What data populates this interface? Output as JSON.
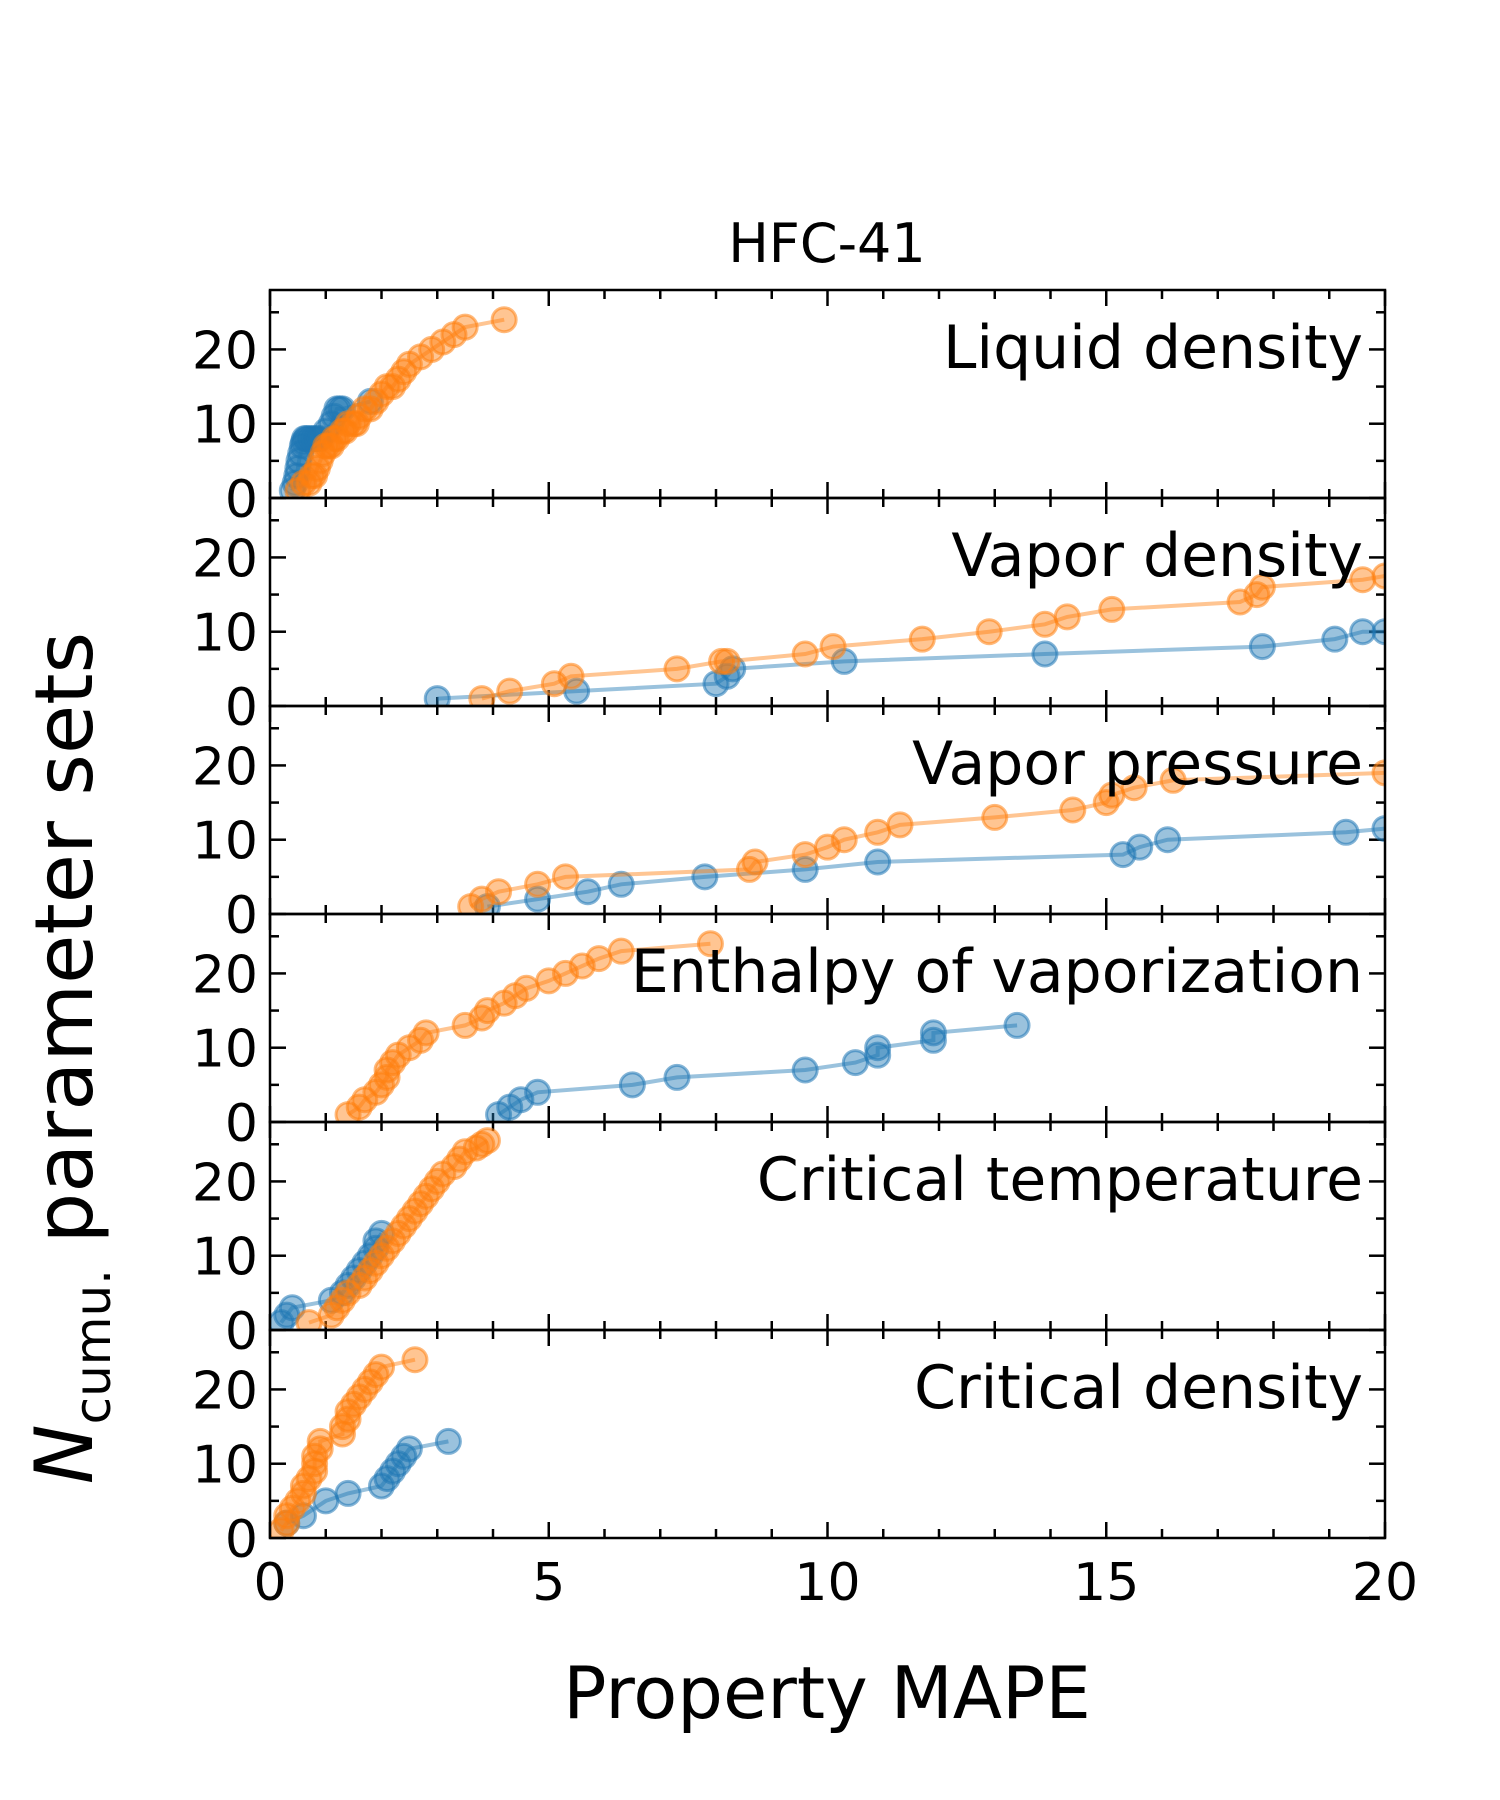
{
  "chart_data": {
    "type": "scatter",
    "title": "HFC-41",
    "xlabel": "Property MAPE",
    "ylabel_italic": "N",
    "ylabel_subscript": "cumu.",
    "ylabel_rest": " parameter sets",
    "xlim": [
      0,
      20
    ],
    "ylim": [
      0,
      28
    ],
    "x_ticks": [
      0,
      5,
      10,
      15,
      20
    ],
    "y_ticks": [
      0,
      10,
      20
    ],
    "colors": {
      "blue": "#1f77b4",
      "orange": "#ff7f0e"
    },
    "panels": [
      {
        "label": "Liquid density",
        "series": [
          {
            "color": "blue",
            "x": [
              0.4,
              0.45,
              0.48,
              0.5,
              0.52,
              0.55,
              0.58,
              0.6,
              0.62,
              0.65,
              0.7,
              0.75,
              0.8,
              0.85,
              0.9,
              1.0,
              1.1,
              1.15,
              1.2,
              1.25,
              1.3,
              1.8
            ],
            "y": [
              1,
              2,
              3,
              4,
              5,
              6,
              7,
              7.5,
              8,
              8,
              8,
              8,
              8,
              8,
              8,
              9,
              10,
              11,
              12,
              12,
              12,
              13
            ]
          },
          {
            "color": "orange",
            "x": [
              0.5,
              0.6,
              0.7,
              0.75,
              0.8,
              0.85,
              0.9,
              0.95,
              1.0,
              1.05,
              1.1,
              1.15,
              1.2,
              1.3,
              1.35,
              1.4,
              1.5,
              1.55,
              1.6,
              1.7,
              1.8,
              1.9,
              2.0,
              2.1,
              2.2,
              2.3,
              2.4,
              2.5,
              2.7,
              2.9,
              3.1,
              3.3,
              3.5,
              4.2
            ],
            "y": [
              1,
              2,
              2,
              3,
              3,
              4,
              5,
              6,
              7,
              7,
              7,
              8,
              8,
              9,
              9,
              10,
              10,
              10,
              11,
              12,
              12,
              13,
              14,
              15,
              15,
              16,
              17,
              18,
              19,
              20,
              21,
              22,
              23,
              24
            ]
          }
        ]
      },
      {
        "label": "Vapor density",
        "series": [
          {
            "color": "blue",
            "x": [
              3.0,
              5.5,
              8.0,
              8.2,
              8.3,
              10.3,
              13.9,
              17.8,
              19.1,
              19.6,
              20.0
            ],
            "y": [
              1,
              2,
              3,
              4,
              5,
              6,
              7,
              8,
              9,
              10,
              10
            ]
          },
          {
            "color": "orange",
            "x": [
              3.8,
              4.3,
              5.1,
              5.4,
              7.3,
              8.1,
              8.2,
              9.6,
              10.1,
              11.7,
              12.9,
              13.9,
              14.3,
              15.1,
              17.4,
              17.7,
              17.8,
              19.6,
              20.0
            ],
            "y": [
              1,
              2,
              3,
              4,
              5,
              6,
              6,
              7,
              8,
              9,
              10,
              11,
              12,
              13,
              14,
              15,
              16,
              17,
              17.5
            ]
          }
        ]
      },
      {
        "label": "Vapor pressure",
        "series": [
          {
            "color": "blue",
            "x": [
              3.9,
              4.8,
              5.7,
              6.3,
              7.8,
              9.6,
              10.9,
              15.3,
              15.6,
              16.1,
              19.3,
              20.0
            ],
            "y": [
              1,
              2,
              3,
              4,
              5,
              6,
              7,
              8,
              9,
              10,
              11,
              11.5
            ]
          },
          {
            "color": "orange",
            "x": [
              3.6,
              3.8,
              4.1,
              4.8,
              5.3,
              8.6,
              8.7,
              9.6,
              10.0,
              10.3,
              10.9,
              11.3,
              13.0,
              14.4,
              15.0,
              15.1,
              15.5,
              16.2,
              20.0
            ],
            "y": [
              1,
              2,
              3,
              4,
              5,
              6,
              7,
              8,
              9,
              10,
              11,
              12,
              13,
              14,
              15,
              16,
              17,
              18,
              19
            ]
          }
        ]
      },
      {
        "label": "Enthalpy of vaporization",
        "series": [
          {
            "color": "blue",
            "x": [
              4.1,
              4.3,
              4.5,
              4.8,
              6.5,
              7.3,
              9.6,
              10.5,
              10.9,
              10.9,
              11.9,
              11.9,
              13.4
            ],
            "y": [
              1,
              2,
              3,
              4,
              5,
              6,
              7,
              8,
              9,
              10,
              11,
              12,
              13
            ]
          },
          {
            "color": "orange",
            "x": [
              1.4,
              1.6,
              1.7,
              1.9,
              2.0,
              2.1,
              2.1,
              2.2,
              2.3,
              2.5,
              2.7,
              2.8,
              3.5,
              3.8,
              3.9,
              4.2,
              4.4,
              4.6,
              5.0,
              5.3,
              5.6,
              5.9,
              6.3,
              7.9
            ],
            "y": [
              1,
              2,
              3,
              4,
              5,
              6,
              7,
              8,
              9,
              10,
              11,
              12,
              13,
              14,
              15,
              16,
              17,
              18,
              19,
              20,
              21,
              22,
              23,
              24
            ]
          }
        ]
      },
      {
        "label": "Critical temperature",
        "series": [
          {
            "color": "blue",
            "x": [
              0.2,
              0.3,
              0.4,
              1.1,
              1.3,
              1.4,
              1.5,
              1.6,
              1.7,
              1.8,
              1.9,
              1.9,
              2.0
            ],
            "y": [
              1,
              2,
              3,
              4,
              5,
              6,
              7,
              8,
              9,
              10,
              11,
              12,
              13
            ]
          },
          {
            "color": "orange",
            "x": [
              0.7,
              1.1,
              1.2,
              1.3,
              1.4,
              1.6,
              1.7,
              1.8,
              1.9,
              2.0,
              2.1,
              2.2,
              2.3,
              2.4,
              2.5,
              2.6,
              2.7,
              2.8,
              2.9,
              3.0,
              3.1,
              3.3,
              3.4,
              3.5,
              3.7,
              3.8,
              3.9
            ],
            "y": [
              1,
              2,
              3,
              4,
              5,
              6,
              7,
              8,
              9,
              10,
              11,
              12,
              13,
              14,
              15,
              16,
              17,
              18,
              19,
              20,
              21,
              22,
              23,
              24,
              24.5,
              25,
              25.5
            ]
          }
        ]
      },
      {
        "label": "Critical density",
        "series": [
          {
            "color": "blue",
            "x": [
              0.3,
              0.6,
              1.0,
              1.4,
              2.0,
              2.1,
              2.2,
              2.3,
              2.4,
              2.5,
              3.2
            ],
            "y": [
              2,
              3,
              5,
              6,
              7,
              8,
              9,
              10,
              11,
              12,
              13
            ]
          },
          {
            "color": "orange",
            "x": [
              0.2,
              0.3,
              0.3,
              0.4,
              0.5,
              0.6,
              0.6,
              0.7,
              0.8,
              0.8,
              0.8,
              0.9,
              0.9,
              1.3,
              1.3,
              1.4,
              1.4,
              1.5,
              1.6,
              1.7,
              1.8,
              1.9,
              2.0,
              2.6
            ],
            "y": [
              1,
              2,
              3,
              4,
              5,
              6,
              7,
              8,
              9,
              10,
              11,
              12,
              13,
              14,
              15,
              16,
              17,
              18,
              19,
              20,
              21,
              22,
              23,
              24
            ]
          }
        ]
      }
    ]
  }
}
